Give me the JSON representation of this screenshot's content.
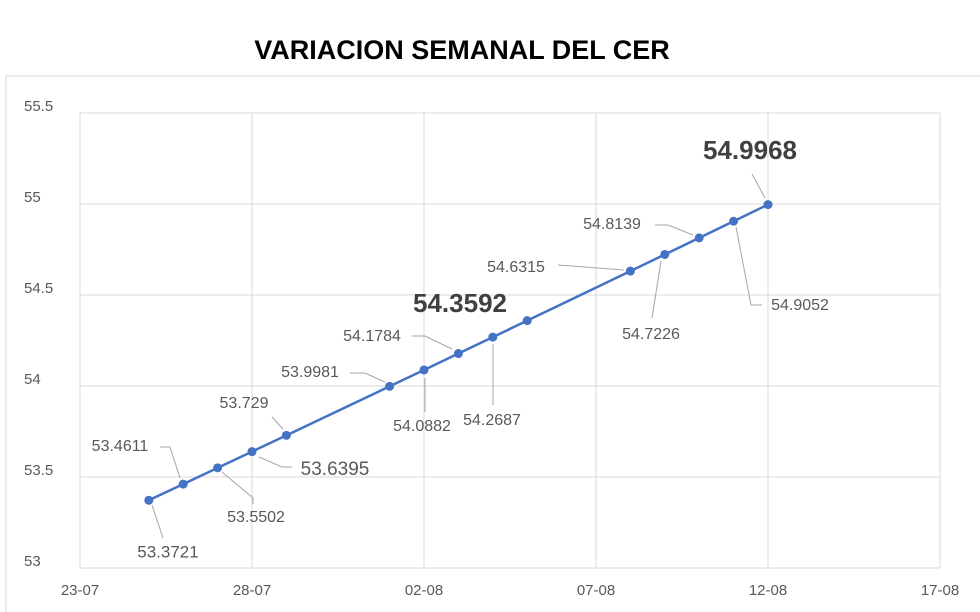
{
  "chart_data": {
    "type": "line",
    "title": "VARIACION SEMANAL DEL CER",
    "x": [
      "25-07",
      "26-07",
      "27-07",
      "28-07",
      "29-07",
      "01-08",
      "02-08",
      "03-08",
      "04-08",
      "05-08",
      "08-08",
      "09-08",
      "10-08",
      "11-08",
      "12-08"
    ],
    "series": [
      {
        "name": "CER",
        "color": "#4472c4",
        "values": [
          53.3721,
          53.4611,
          53.5502,
          53.6395,
          53.729,
          53.9981,
          54.0882,
          54.1784,
          54.2687,
          54.3592,
          54.6315,
          54.7226,
          54.8139,
          54.9052,
          54.9968
        ]
      }
    ],
    "xlim": [
      "23-07",
      "17-08"
    ],
    "xticks": [
      "23-07",
      "28-07",
      "02-08",
      "07-08",
      "12-08",
      "17-08"
    ],
    "ylim": [
      53,
      55.5
    ],
    "yticks": [
      53,
      53.5,
      54,
      54.5,
      55,
      55.5
    ],
    "grid": true
  }
}
